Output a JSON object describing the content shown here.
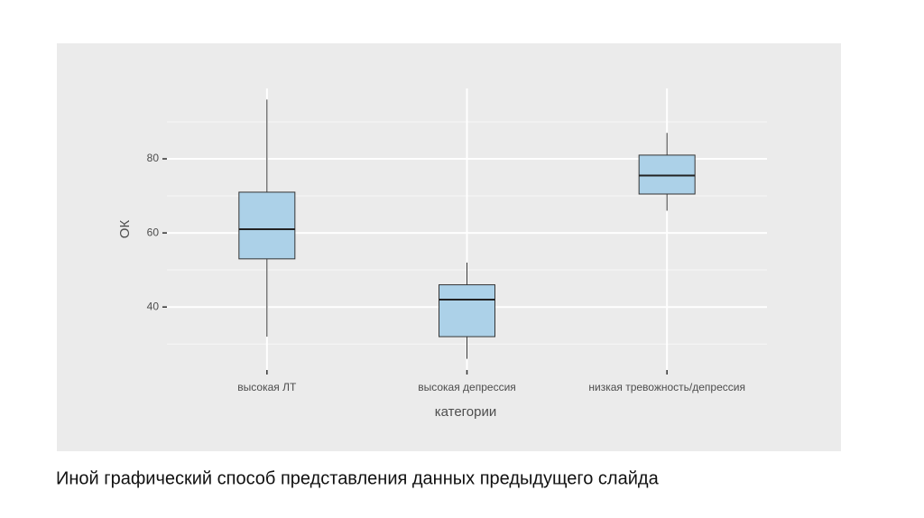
{
  "chart_data": {
    "type": "box",
    "xlabel": "категории",
    "ylabel": "ОК",
    "categories": [
      "высокая ЛТ",
      "высокая депрессия",
      "низкая тревожность/депрессия"
    ],
    "series": [
      {
        "color": "#acd1e8",
        "whislo": [
          32,
          26,
          66
        ],
        "q1": [
          53,
          32,
          70.5
        ],
        "median": [
          61,
          42,
          75.5
        ],
        "q3": [
          71,
          46,
          81
        ],
        "whishi": [
          96,
          52,
          87
        ]
      }
    ],
    "ylim": [
      23,
      99
    ],
    "yticks": [
      40,
      60,
      80
    ],
    "minor_yticks": [
      30,
      50,
      70,
      90
    ],
    "grid": true
  },
  "caption": "Иной графический способ представления данных предыдущего слайда"
}
